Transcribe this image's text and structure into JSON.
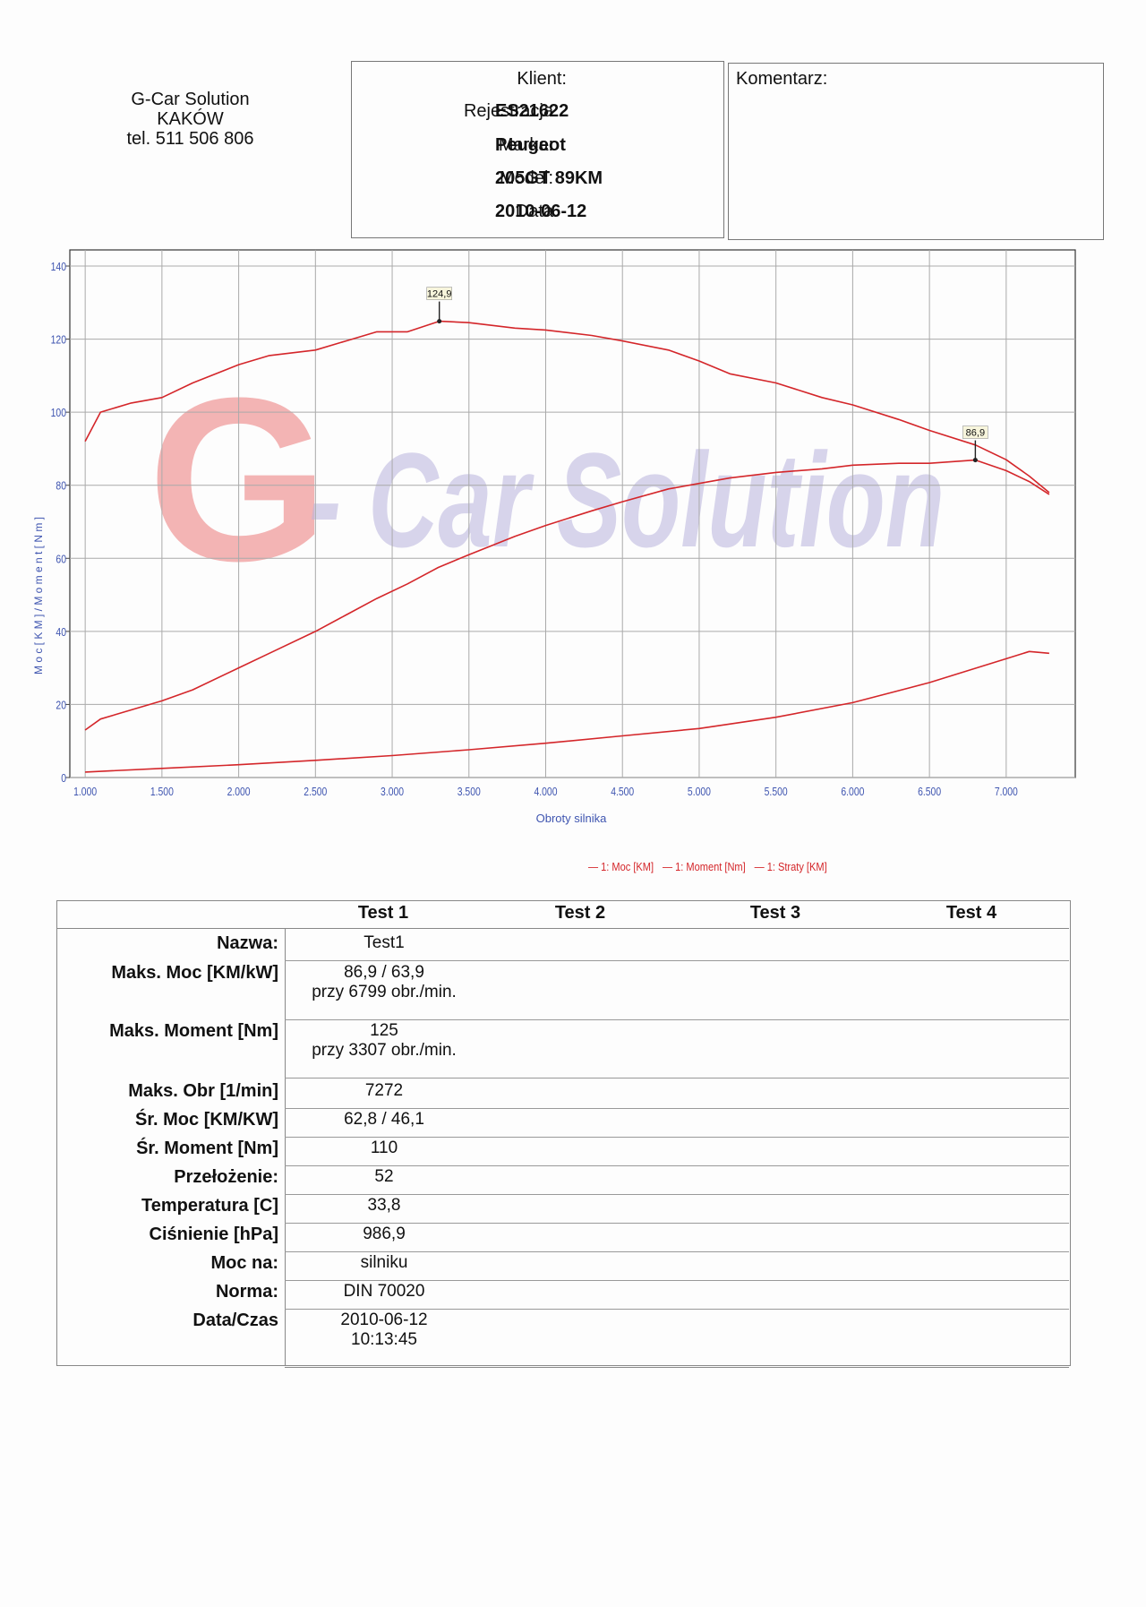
{
  "company": {
    "name": "G-Car Solution",
    "city": "KAKÓW",
    "phone": "tel. 511 506 806"
  },
  "client": {
    "title": "Klient:",
    "fields": [
      {
        "label": "Rejestracja",
        "value": "ES21622"
      },
      {
        "label": "Marka:",
        "value": "Peugeot"
      },
      {
        "label": "Model:",
        "value": "205GT 89KM"
      },
      {
        "label": "Data",
        "value": "2010-06-12"
      }
    ]
  },
  "comment": {
    "label": "Komentarz:"
  },
  "chart_data": {
    "type": "line",
    "xlabel": "Obroty silnika",
    "ylabel": "M o c  [ K M ]  /  M o m e n t  [ N m ]",
    "xlim": [
      900,
      7450
    ],
    "ylim": [
      0,
      140
    ],
    "x_ticks": [
      "1.000",
      "1.500",
      "2.000",
      "2.500",
      "3.000",
      "3.500",
      "4.000",
      "4.500",
      "5.000",
      "5.500",
      "6.000",
      "6.500",
      "7.000"
    ],
    "y_ticks": [
      "0",
      "20",
      "40",
      "60",
      "80",
      "100",
      "120",
      "140"
    ],
    "watermark": {
      "text": "G - Car Solution",
      "colors": [
        "#e85c5c",
        "#b9b4dd"
      ]
    },
    "annotations": [
      {
        "x": 3307,
        "y": 124.9,
        "label": "124,9"
      },
      {
        "x": 6799,
        "y": 86.9,
        "label": "86,9"
      }
    ],
    "series": [
      {
        "name": "1: Moc [KM]",
        "color": "#d4262a",
        "x": [
          1000,
          1100,
          1300,
          1500,
          1700,
          2000,
          2200,
          2500,
          2700,
          2900,
          3100,
          3300,
          3500,
          3800,
          4000,
          4300,
          4500,
          4800,
          5000,
          5200,
          5500,
          5800,
          6000,
          6300,
          6500,
          6800,
          7000,
          7150,
          7280
        ],
        "y": [
          13,
          16,
          18.5,
          21,
          24,
          30,
          34,
          40,
          44.5,
          49,
          53,
          57.5,
          61,
          66,
          69,
          73,
          75.5,
          79,
          80.5,
          82,
          83.5,
          84.5,
          85.5,
          86,
          86,
          86.9,
          84,
          81,
          77.5
        ]
      },
      {
        "name": "1: Moment [Nm]",
        "color": "#d4262a",
        "x": [
          1000,
          1100,
          1300,
          1500,
          1700,
          2000,
          2200,
          2500,
          2700,
          2900,
          3100,
          3307,
          3500,
          3800,
          4000,
          4300,
          4500,
          4800,
          5000,
          5200,
          5500,
          5800,
          6000,
          6300,
          6500,
          6800,
          7000,
          7150,
          7280
        ],
        "y": [
          92,
          100,
          102.5,
          104,
          108,
          113,
          115.5,
          117,
          119.5,
          122,
          122,
          124.9,
          124.5,
          123,
          122.5,
          121,
          119.5,
          117,
          114,
          110.5,
          108,
          104,
          102,
          98,
          95,
          91,
          87,
          82.5,
          78
        ]
      },
      {
        "name": "1: Straty [KM]",
        "color": "#d4262a",
        "x": [
          1000,
          1500,
          2000,
          2500,
          3000,
          3500,
          4000,
          4500,
          5000,
          5500,
          6000,
          6500,
          7000,
          7150,
          7280
        ],
        "y": [
          1.5,
          2.5,
          3.5,
          4.7,
          6,
          7.6,
          9.4,
          11.4,
          13.4,
          16.5,
          20.5,
          26,
          32.5,
          34.5,
          34
        ]
      }
    ]
  },
  "results": {
    "columns": [
      "Test 1",
      "Test 2",
      "Test 3",
      "Test 4"
    ],
    "rows": [
      {
        "label": "Nazwa:",
        "value": "Test1",
        "value2": ""
      },
      {
        "label": "Maks. Moc [KM/kW]",
        "value": "86,9 / 63,9",
        "value2": "przy 6799 obr./min."
      },
      {
        "label": "Maks. Moment [Nm]",
        "value": "125",
        "value2": "przy 3307 obr./min."
      },
      {
        "label": "Maks. Obr [1/min]",
        "value": "7272",
        "value2": ""
      },
      {
        "label": "Śr. Moc [KM/KW]",
        "value": "62,8 / 46,1",
        "value2": ""
      },
      {
        "label": "Śr. Moment [Nm]",
        "value": "110",
        "value2": ""
      },
      {
        "label": "Przełożenie:",
        "value": "52",
        "value2": ""
      },
      {
        "label": "Temperatura [C]",
        "value": "33,8",
        "value2": ""
      },
      {
        "label": "Ciśnienie [hPa]",
        "value": "986,9",
        "value2": ""
      },
      {
        "label": "Moc na:",
        "value": "silniku",
        "value2": ""
      },
      {
        "label": "Norma:",
        "value": "DIN 70020",
        "value2": ""
      },
      {
        "label": "Data/Czas",
        "value": "2010-06-12",
        "value2": "10:13:45"
      }
    ]
  }
}
